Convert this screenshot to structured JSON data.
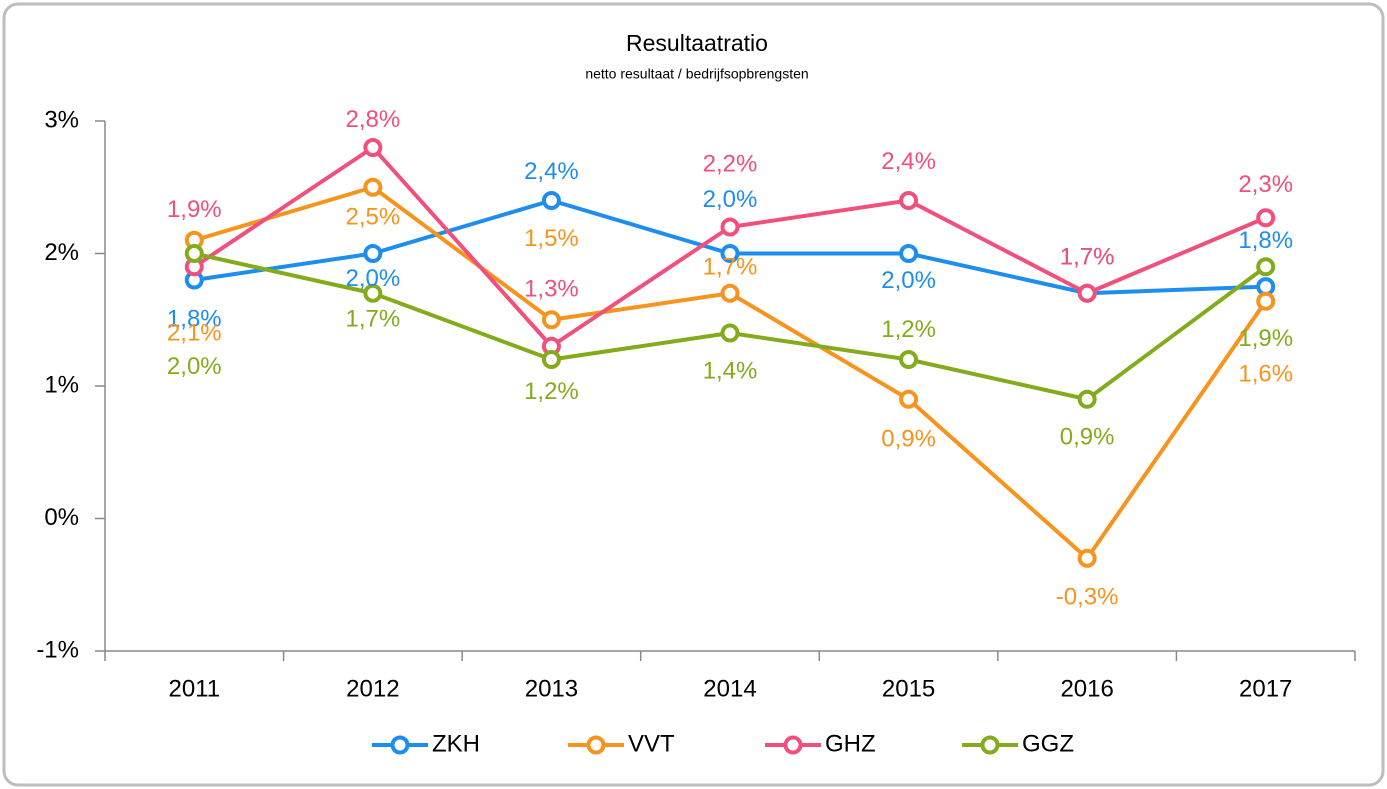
{
  "chart_data": {
    "type": "line",
    "title": "Resultaatratio",
    "subtitle": "netto resultaat / bedrijfsopbrengsten",
    "categories": [
      "2011",
      "2012",
      "2013",
      "2014",
      "2015",
      "2016",
      "2017"
    ],
    "series": [
      {
        "name": "ZKH",
        "color": "#1e8eee",
        "values": [
          1.8,
          2.0,
          2.4,
          2.0,
          2.0,
          1.7,
          1.75
        ],
        "value_labels": [
          "1,8%",
          "2,0%",
          "2,4%",
          "2,0%",
          "2,0%",
          "1,7%",
          "1,8%"
        ]
      },
      {
        "name": "VVT",
        "color": "#f7941d",
        "values": [
          2.1,
          2.5,
          1.5,
          1.7,
          0.9,
          -0.3,
          1.64
        ],
        "value_labels": [
          "2,1%",
          "2,5%",
          "1,5%",
          "1,7%",
          "0,9%",
          "-0,3%",
          "1,6%"
        ]
      },
      {
        "name": "GHZ",
        "color": "#f0507b",
        "values": [
          1.9,
          2.8,
          1.3,
          2.2,
          2.4,
          1.7,
          2.27
        ],
        "value_labels": [
          "1,9%",
          "2,8%",
          "1,3%",
          "2,2%",
          "2,4%",
          "1,7%",
          "2,3%"
        ]
      },
      {
        "name": "GGZ",
        "color": "#84ab1c",
        "values": [
          2.0,
          1.7,
          1.2,
          1.4,
          1.2,
          0.9,
          1.9
        ],
        "value_labels": [
          "2,0%",
          "1,7%",
          "1,2%",
          "1,4%",
          "1,2%",
          "0,9%",
          "1,9%"
        ]
      }
    ],
    "ylim": [
      -1,
      3
    ],
    "yticks": [
      {
        "value": -1,
        "label": "-1%"
      },
      {
        "value": 0,
        "label": "0%"
      },
      {
        "value": 1,
        "label": "1%"
      },
      {
        "value": 2,
        "label": "2%"
      },
      {
        "value": 3,
        "label": "3%"
      }
    ],
    "legend": "bottom"
  }
}
